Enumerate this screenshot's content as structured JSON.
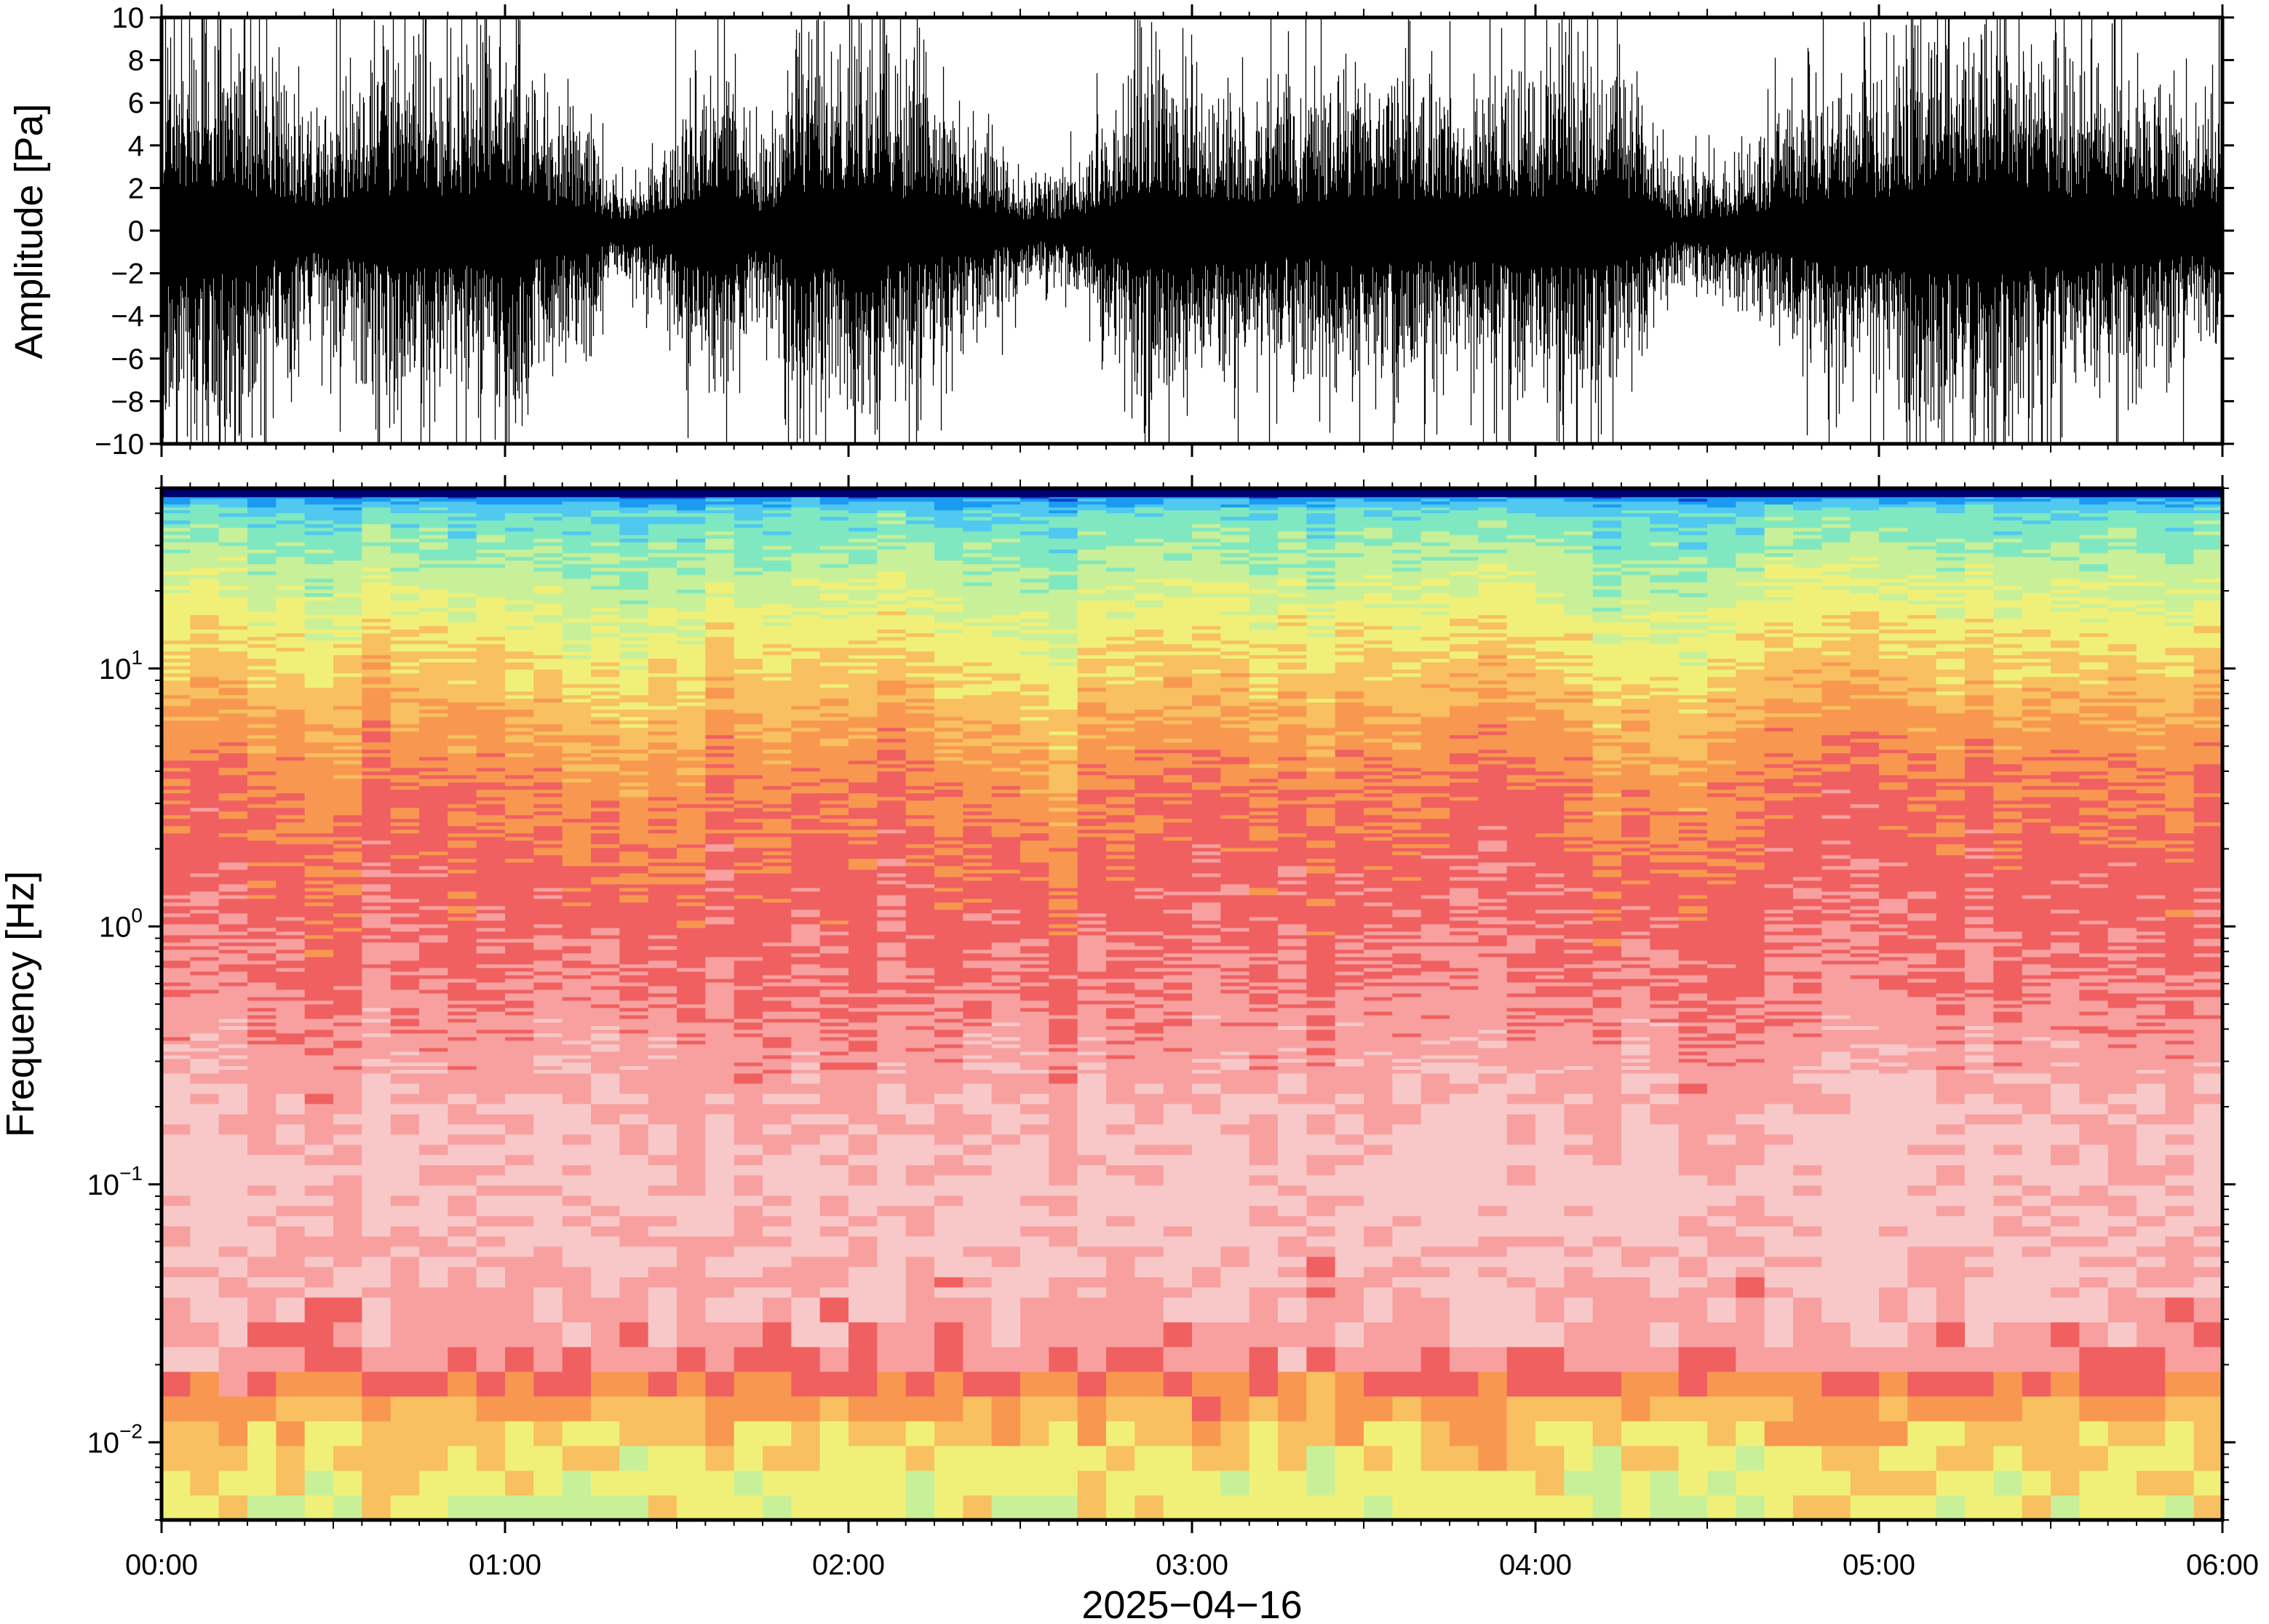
{
  "chart_data": [
    {
      "type": "line",
      "ylabel": "Amplitude [Pa]",
      "ylim": [
        -10,
        10
      ],
      "y_ticks": [
        "10",
        "8",
        "6",
        "4",
        "2",
        "0",
        "−2",
        "−4",
        "−6",
        "−8",
        "−10"
      ],
      "y_tick_values": [
        10,
        8,
        6,
        4,
        2,
        0,
        -2,
        -4,
        -6,
        -8,
        -10
      ],
      "x_range_hours": [
        0,
        6
      ],
      "line_color": "#000000",
      "envelope": {
        "time_hours": [
          0.0,
          0.15,
          0.3,
          0.45,
          0.6,
          0.75,
          0.9,
          1.0,
          1.1,
          1.25,
          1.3,
          1.4,
          1.5,
          1.6,
          1.75,
          1.85,
          2.0,
          2.15,
          2.25,
          2.4,
          2.5,
          2.6,
          2.7,
          2.85,
          3.0,
          3.15,
          3.3,
          3.45,
          3.6,
          3.75,
          3.9,
          4.0,
          4.15,
          4.3,
          4.4,
          4.55,
          4.7,
          4.85,
          5.0,
          5.15,
          5.3,
          5.45,
          5.6,
          5.75,
          5.9,
          6.0
        ],
        "amplitude_pa": [
          7,
          8,
          6,
          4,
          6,
          7,
          6,
          9,
          5,
          4,
          2,
          2,
          4,
          7,
          3,
          7,
          7,
          6,
          5,
          4,
          2,
          2,
          3,
          7,
          6,
          5,
          5,
          6,
          6,
          5,
          6,
          6,
          7,
          5,
          2,
          2.5,
          4,
          6,
          6,
          8,
          8,
          7,
          6,
          6,
          4,
          5
        ]
      }
    },
    {
      "type": "heatmap",
      "ylabel": "Frequency [Hz]",
      "y_scale": "log",
      "ylim": [
        0.005,
        50
      ],
      "y_tick_values": [
        10,
        1,
        0.1,
        0.01
      ],
      "y_ticks": [
        {
          "base": "10",
          "exp": "1"
        },
        {
          "base": "10",
          "exp": "0"
        },
        {
          "base": "10",
          "exp": "−1"
        },
        {
          "base": "10",
          "exp": "−2"
        }
      ],
      "xlabel": "2025−04−16",
      "x_ticks": [
        "00:00",
        "01:00",
        "02:00",
        "03:00",
        "04:00",
        "05:00",
        "06:00"
      ],
      "x_tick_hours": [
        0,
        1,
        2,
        3,
        4,
        5,
        6
      ],
      "colormap": [
        "#000070",
        "#0b3fd0",
        "#1a9af0",
        "#50c8f0",
        "#80e8c0",
        "#c8f098",
        "#f0f078",
        "#f8c060",
        "#f89850",
        "#f06060",
        "#f8a0a0",
        "#f8c8c8"
      ],
      "time_segments": 72,
      "levels": {
        "level_scale": "colormap index 0-11",
        "frequency_hz": [
          48,
          40,
          30,
          20,
          14,
          10,
          7,
          5,
          3.5,
          2,
          1.5,
          1,
          0.6,
          0.4,
          0.25,
          0.15,
          0.1,
          0.07,
          0.05,
          0.035,
          0.025,
          0.02,
          0.015,
          0.012,
          0.01,
          0.008,
          0.006
        ],
        "quiet_level": [
          1.3,
          3,
          3.7,
          4.3,
          5,
          5.5,
          6.2,
          6.8,
          7.4,
          8,
          8.4,
          9,
          9.5,
          10,
          10.3,
          10.6,
          10.9,
          10.8,
          10.6,
          10.4,
          10,
          9.6,
          7.5,
          6.8,
          6.3,
          5.8,
          5.5
        ],
        "active_level": [
          1.6,
          3.8,
          4.6,
          5.6,
          6.4,
          7,
          7.7,
          8.2,
          8.7,
          9,
          9.2,
          9.3,
          9.5,
          9.8,
          10.3,
          10.6,
          10.9,
          10.8,
          10.6,
          10.4,
          10,
          9.6,
          8,
          7.2,
          6.8,
          6.3,
          6
        ]
      },
      "activity": {
        "time_hours": [
          0,
          0.5,
          1.0,
          1.2,
          1.4,
          1.6,
          2.0,
          2.3,
          2.5,
          2.65,
          2.8,
          3.0,
          3.5,
          4.0,
          4.25,
          4.4,
          4.6,
          5.0,
          5.5,
          6.0
        ],
        "value": [
          0.85,
          0.8,
          0.95,
          0.35,
          0.3,
          0.8,
          0.9,
          0.8,
          0.35,
          0.4,
          0.95,
          0.85,
          0.75,
          0.85,
          0.5,
          0.35,
          0.95,
          0.9,
          0.85,
          0.85
        ]
      }
    }
  ]
}
